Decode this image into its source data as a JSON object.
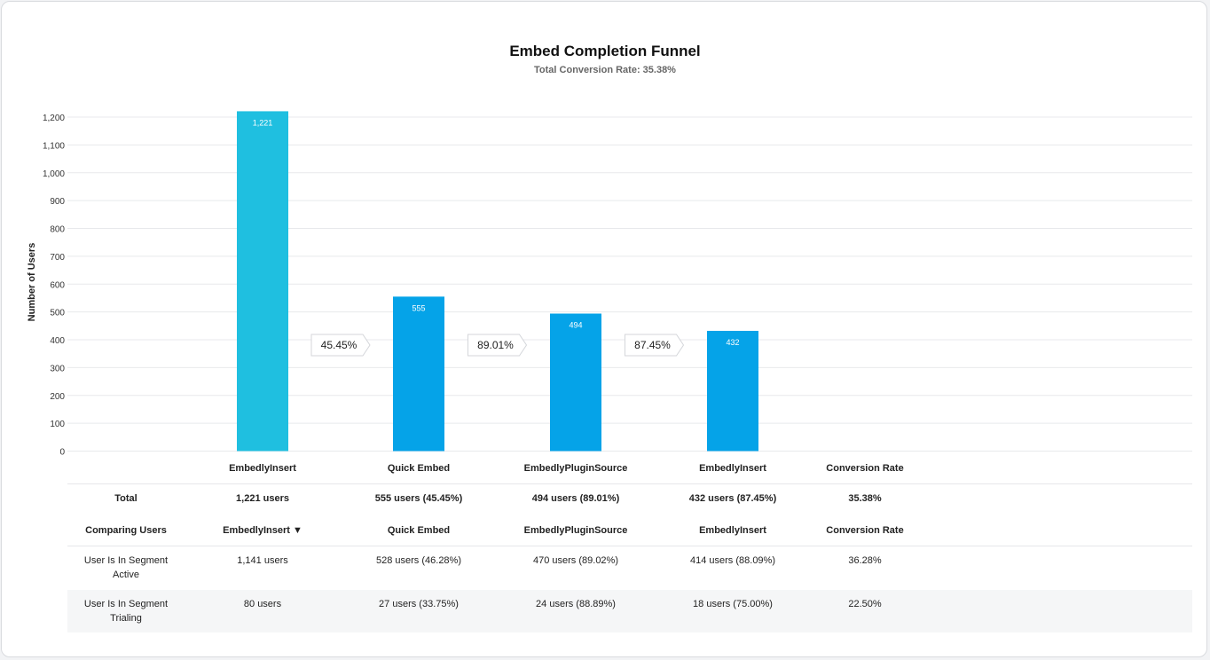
{
  "title": "Embed Completion Funnel",
  "subtitle": "Total Conversion Rate: 35.38%",
  "colors": {
    "first_bar": "#1fbfe0",
    "bar": "#05a3e8",
    "grid": "#e8e9ec",
    "alt_row": "#f5f6f7"
  },
  "chart_data": {
    "type": "bar",
    "title": "Embed Completion Funnel",
    "subtitle": "Total Conversion Rate: 35.38%",
    "ylabel": "Number of Users",
    "xlabel": "",
    "categories": [
      "EmbedlyInsert",
      "Quick Embed",
      "EmbedlyPluginSource",
      "EmbedlyInsert"
    ],
    "values": [
      1221,
      555,
      494,
      432
    ],
    "value_labels": [
      "1,221",
      "555",
      "494",
      "432"
    ],
    "step_conversions": [
      "45.45%",
      "89.01%",
      "87.45%"
    ],
    "ylim": [
      0,
      1200
    ],
    "yticks": [
      0,
      100,
      200,
      300,
      400,
      500,
      600,
      700,
      800,
      900,
      1000,
      1100,
      1200
    ],
    "ytick_labels": [
      "0",
      "100",
      "200",
      "300",
      "400",
      "500",
      "600",
      "700",
      "800",
      "900",
      "1,000",
      "1,100",
      "1,200"
    ],
    "grid": true
  },
  "table": {
    "header": [
      "",
      "EmbedlyInsert",
      "Quick Embed",
      "EmbedlyPluginSource",
      "EmbedlyInsert",
      "Conversion Rate"
    ],
    "total_row": [
      "Total",
      "1,221 users",
      "555 users (45.45%)",
      "494 users (89.01%)",
      "432 users (87.45%)",
      "35.38%"
    ],
    "compare_header": [
      "Comparing Users",
      "EmbedlyInsert ▼",
      "Quick Embed",
      "EmbedlyPluginSource",
      "EmbedlyInsert",
      "Conversion Rate"
    ],
    "segments": [
      {
        "name_line1": "User Is In Segment",
        "name_line2": "Active",
        "cells": [
          "1,141 users",
          "528 users (46.28%)",
          "470 users (89.02%)",
          "414 users (88.09%)",
          "36.28%"
        ]
      },
      {
        "name_line1": "User Is In Segment",
        "name_line2": "Trialing",
        "cells": [
          "80 users",
          "27 users (33.75%)",
          "24 users (88.89%)",
          "18 users (75.00%)",
          "22.50%"
        ]
      }
    ]
  }
}
